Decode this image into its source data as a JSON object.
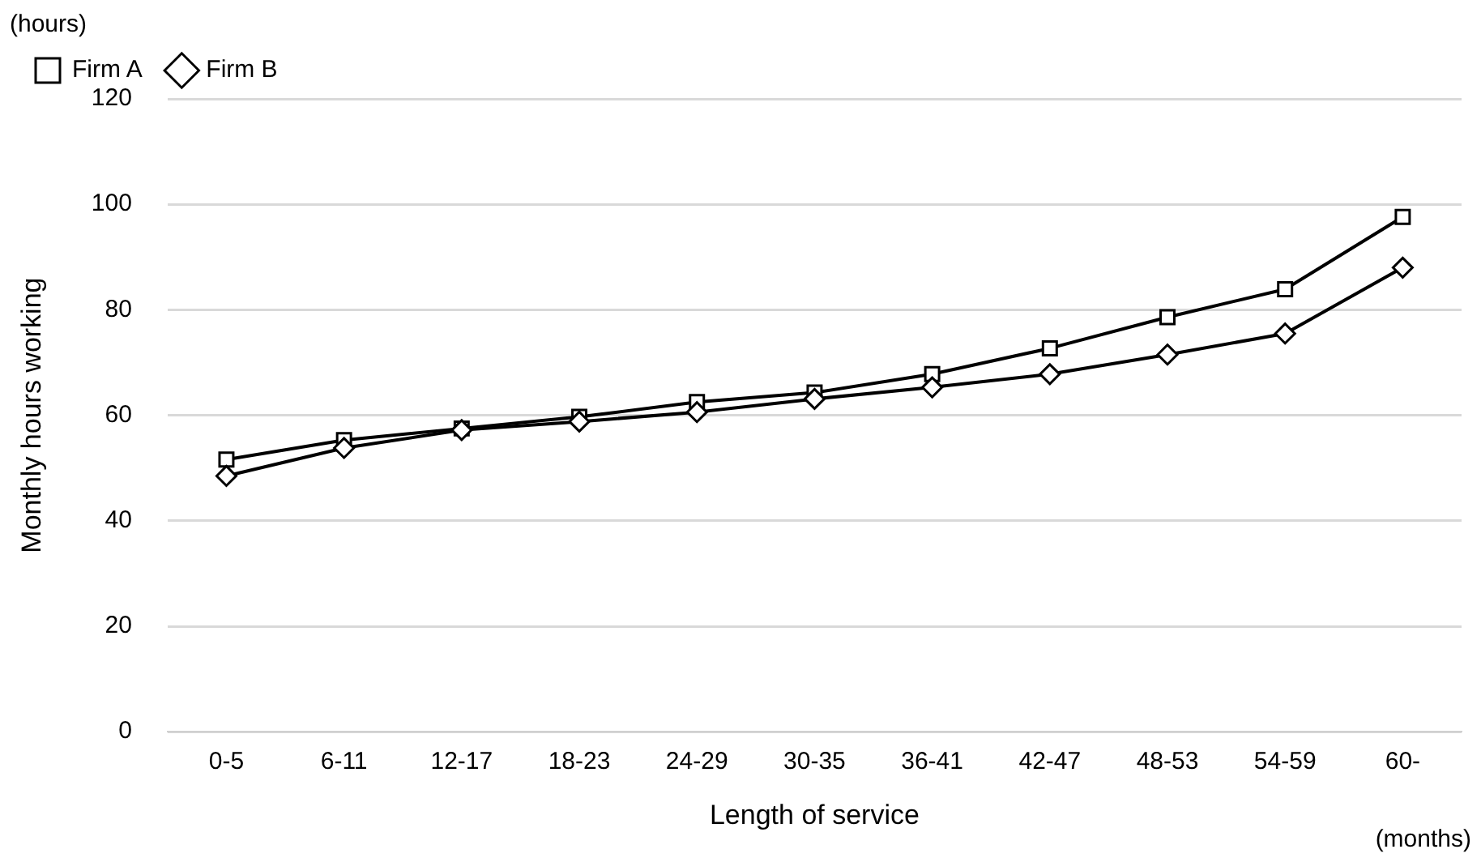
{
  "chart_data": {
    "type": "line",
    "xlabel": "Length of service",
    "ylabel": "Monthly hours working",
    "annotations": [
      "(hours)",
      "(months)"
    ],
    "categories": [
      "0-5",
      "6-11",
      "12-17",
      "18-23",
      "24-29",
      "30-35",
      "36-41",
      "42-47",
      "48-53",
      "54-59",
      "60-"
    ],
    "series": [
      {
        "name": "Firm A",
        "color": "#000000",
        "marker": "square",
        "values": [
          51.6,
          55.3,
          57.5,
          59.7,
          62.5,
          64.3,
          67.8,
          72.7,
          78.6,
          83.9,
          97.6
        ]
      },
      {
        "name": "Firm B",
        "color": "#000000",
        "marker": "diamond",
        "values": [
          48.5,
          53.8,
          57.2,
          58.8,
          60.6,
          63.1,
          65.3,
          67.8,
          71.5,
          75.5,
          88.0
        ]
      }
    ],
    "ylim": [
      0,
      120
    ],
    "yticks": [
      0,
      20,
      40,
      60,
      80,
      100,
      120
    ],
    "grid": "y",
    "legend": "top left",
    "line_style": "solid"
  }
}
